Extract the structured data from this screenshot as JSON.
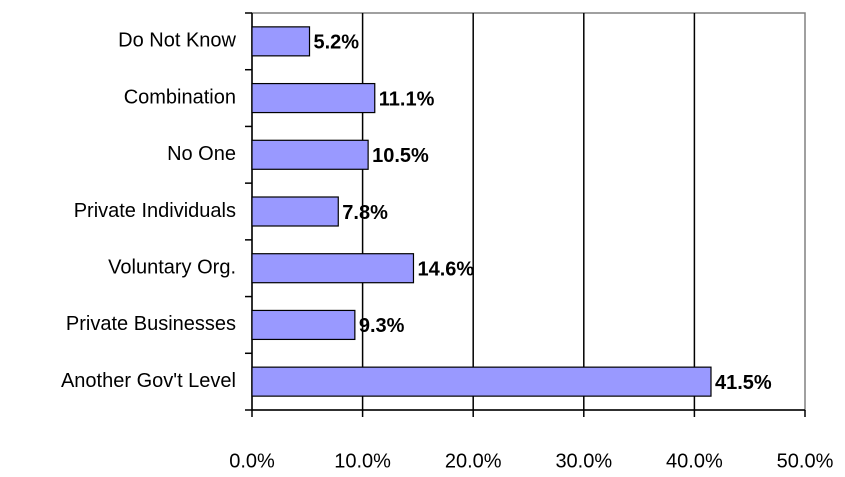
{
  "chart_data": {
    "type": "bar",
    "orientation": "horizontal",
    "categories": [
      "Do Not Know",
      "Combination",
      "No One",
      "Private Individuals",
      "Voluntary Org.",
      "Private Businesses",
      "Another Gov't Level"
    ],
    "values": [
      5.2,
      11.1,
      10.5,
      7.8,
      14.6,
      9.3,
      41.5
    ],
    "value_labels": [
      "5.2%",
      "11.1%",
      "10.5%",
      "7.8%",
      "14.6%",
      "9.3%",
      "41.5%"
    ],
    "color": "#9999ff",
    "xlim": [
      0,
      50
    ],
    "xticks": [
      {
        "value": 0,
        "label": "0.0%"
      },
      {
        "value": 10,
        "label": "10.0%"
      },
      {
        "value": 20,
        "label": "20.0%"
      },
      {
        "value": 30,
        "label": "30.0%"
      },
      {
        "value": 40,
        "label": "40.0%"
      },
      {
        "value": 50,
        "label": "50.0%"
      }
    ],
    "grid": true
  }
}
